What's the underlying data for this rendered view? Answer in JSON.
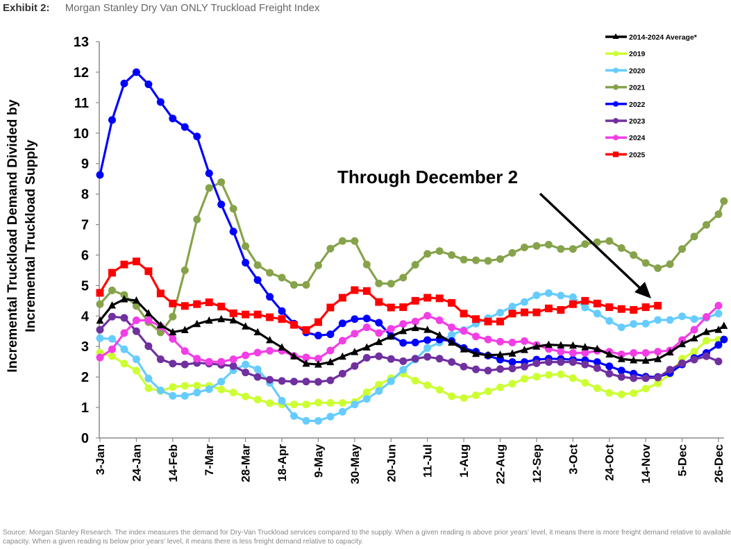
{
  "header": {
    "exhibit": "Exhibit 2:",
    "title": "Morgan Stanley Dry Van ONLY Truckload Freight Index"
  },
  "footer": {
    "source": "Source: Morgan Stanley Research. The index measures the demand for Dry-Van Truckload services compared to the supply. When a given reading is above prior years' level, it means there is more freight demand relative to available capacity. When a given reading is below prior years' level, it means there is less freight demand relative to capacity."
  },
  "chart_data": {
    "type": "line",
    "title": "Morgan Stanley Dry Van ONLY Truckload Freight Index",
    "ylabel_lines": [
      "Incremental Truckload Demand Divided by",
      "Incremental Truckload Supply"
    ],
    "xlabel": "",
    "ylim": [
      0,
      13
    ],
    "yticks": [
      "0",
      "1",
      "2",
      "3",
      "4",
      "5",
      "6",
      "7",
      "8",
      "9",
      "10",
      "11",
      "12",
      "13"
    ],
    "x_unit": "weeks since 3-Jan",
    "xlim": [
      0,
      51.45
    ],
    "xtick_labels": [
      "3-Jan",
      "24-Jan",
      "14-Feb",
      "7-Mar",
      "28-Mar",
      "18-Apr",
      "9-May",
      "30-May",
      "20-Jun",
      "11-Jul",
      "1-Aug",
      "22-Aug",
      "12-Sep",
      "3-Oct",
      "24-Oct",
      "14-Nov",
      "5-Dec",
      "26-Dec"
    ],
    "xtick_weeks": [
      0,
      3,
      6,
      9,
      12,
      15,
      18,
      21,
      24,
      27,
      30,
      33,
      36,
      39,
      42,
      45,
      48,
      51
    ],
    "x_weeks": [
      0,
      1,
      2,
      3,
      4,
      5,
      6,
      7,
      8,
      9,
      10,
      11,
      12,
      13,
      14,
      15,
      16,
      17,
      18,
      19,
      20,
      21,
      22,
      23,
      24,
      25,
      26,
      27,
      28,
      29,
      30,
      31,
      32,
      33,
      34,
      35,
      36,
      37,
      38,
      39,
      40,
      41,
      42,
      43,
      44,
      45,
      46,
      47,
      48,
      49,
      50,
      51,
      51.45
    ],
    "grid": false,
    "legend_position": "top-right",
    "annotation": "Through December 2",
    "series": [
      {
        "name": "2019",
        "color": "#ccff33",
        "marker": "circle",
        "values": [
          2.8,
          2.68,
          2.44,
          2.21,
          1.63,
          1.54,
          1.67,
          1.71,
          1.72,
          1.71,
          1.59,
          1.49,
          1.36,
          1.26,
          1.14,
          1.1,
          1.1,
          1.1,
          1.16,
          1.15,
          1.15,
          1.18,
          1.5,
          1.75,
          1.96,
          2.11,
          1.88,
          1.73,
          1.58,
          1.37,
          1.31,
          1.4,
          1.53,
          1.66,
          1.78,
          1.94,
          2.01,
          2.07,
          2.09,
          1.96,
          1.81,
          1.63,
          1.48,
          1.43,
          1.47,
          1.62,
          1.79,
          2.1,
          2.6,
          2.83,
          3.19,
          3.22
        ]
      },
      {
        "name": "2020",
        "color": "#66ccff",
        "marker": "circle",
        "values": [
          3.27,
          3.25,
          2.91,
          2.58,
          1.95,
          1.56,
          1.38,
          1.38,
          1.49,
          1.6,
          1.85,
          2.22,
          2.41,
          2.25,
          1.81,
          1.22,
          0.72,
          0.56,
          0.56,
          0.7,
          0.86,
          1.1,
          1.28,
          1.54,
          1.86,
          2.24,
          2.57,
          2.95,
          3.13,
          3.38,
          3.54,
          3.75,
          3.93,
          4.11,
          4.31,
          4.46,
          4.68,
          4.75,
          4.67,
          4.62,
          4.28,
          4.08,
          3.84,
          3.63,
          3.74,
          3.75,
          3.87,
          3.87,
          3.99,
          3.9,
          3.94,
          4.08
        ]
      },
      {
        "name": "2021",
        "color": "#86a34b",
        "marker": "circle",
        "values": [
          4.39,
          4.84,
          4.69,
          4.33,
          3.8,
          3.46,
          3.98,
          5.5,
          7.17,
          8.2,
          8.39,
          7.52,
          6.29,
          5.67,
          5.42,
          5.26,
          5.02,
          5.02,
          5.66,
          6.21,
          6.46,
          6.46,
          5.69,
          5.07,
          5.06,
          5.26,
          5.68,
          6.04,
          6.13,
          6.0,
          5.85,
          5.83,
          5.81,
          5.87,
          6.07,
          6.25,
          6.3,
          6.34,
          6.2,
          6.2,
          6.36,
          6.42,
          6.46,
          6.23,
          6.0,
          5.74,
          5.57,
          5.7,
          6.2,
          6.61,
          6.99,
          7.34,
          7.77
        ]
      },
      {
        "name": "2022",
        "color": "#0000ff",
        "marker": "circle",
        "values": [
          8.63,
          10.43,
          11.63,
          12.0,
          11.6,
          11.02,
          10.48,
          10.2,
          9.89,
          8.68,
          7.66,
          6.77,
          5.75,
          5.18,
          4.63,
          4.16,
          3.75,
          3.46,
          3.36,
          3.4,
          3.76,
          3.9,
          3.92,
          3.78,
          3.35,
          3.12,
          3.13,
          3.21,
          3.23,
          3.18,
          2.95,
          2.83,
          2.7,
          2.57,
          2.49,
          2.49,
          2.57,
          2.6,
          2.59,
          2.57,
          2.55,
          2.49,
          2.35,
          2.21,
          2.11,
          2.01,
          2.0,
          2.13,
          2.41,
          2.62,
          2.79,
          3.05,
          3.23
        ]
      },
      {
        "name": "2023",
        "color": "#7030a0",
        "marker": "circle",
        "values": [
          3.55,
          3.98,
          3.94,
          3.5,
          3.01,
          2.58,
          2.44,
          2.41,
          2.46,
          2.44,
          2.4,
          2.36,
          2.15,
          2.0,
          1.91,
          1.87,
          1.85,
          1.85,
          1.84,
          1.89,
          2.11,
          2.36,
          2.63,
          2.68,
          2.59,
          2.52,
          2.6,
          2.66,
          2.6,
          2.49,
          2.34,
          2.25,
          2.21,
          2.26,
          2.28,
          2.34,
          2.45,
          2.49,
          2.49,
          2.49,
          2.41,
          2.29,
          2.11,
          2.0,
          1.96,
          1.96,
          1.98,
          2.24,
          2.45,
          2.57,
          2.68,
          2.51
        ]
      },
      {
        "name": "2024",
        "color": "#f23ee6",
        "marker": "circle",
        "values": [
          2.64,
          2.91,
          3.44,
          3.86,
          3.86,
          3.66,
          3.25,
          2.85,
          2.6,
          2.5,
          2.5,
          2.58,
          2.71,
          2.8,
          2.86,
          2.86,
          2.69,
          2.64,
          2.6,
          2.87,
          3.19,
          3.42,
          3.63,
          3.44,
          3.58,
          3.74,
          3.82,
          4.01,
          3.86,
          3.63,
          3.51,
          3.33,
          3.23,
          3.16,
          3.13,
          3.18,
          3.05,
          2.92,
          2.83,
          2.79,
          2.79,
          2.86,
          2.83,
          2.74,
          2.79,
          2.79,
          2.83,
          2.87,
          3.21,
          3.55,
          3.97,
          4.34
        ]
      },
      {
        "name": "2014-2024 Average*",
        "color": "#000000",
        "marker": "triangle",
        "values": [
          3.85,
          4.35,
          4.55,
          4.51,
          4.09,
          3.7,
          3.47,
          3.54,
          3.74,
          3.85,
          3.9,
          3.86,
          3.66,
          3.47,
          3.21,
          2.97,
          2.68,
          2.44,
          2.41,
          2.49,
          2.67,
          2.82,
          2.97,
          3.15,
          3.33,
          3.51,
          3.61,
          3.55,
          3.37,
          3.13,
          2.91,
          2.76,
          2.72,
          2.73,
          2.77,
          2.89,
          3.0,
          3.06,
          3.04,
          3.03,
          2.98,
          2.92,
          2.74,
          2.59,
          2.55,
          2.54,
          2.59,
          2.81,
          3.08,
          3.27,
          3.48,
          3.55,
          3.68
        ]
      },
      {
        "name": "2025",
        "color": "#ff0000",
        "marker": "square",
        "values": [
          4.76,
          5.42,
          5.69,
          5.79,
          5.47,
          4.74,
          4.41,
          4.33,
          4.39,
          4.45,
          4.31,
          4.09,
          4.05,
          4.05,
          3.96,
          3.9,
          3.71,
          3.54,
          3.8,
          4.28,
          4.6,
          4.85,
          4.82,
          4.46,
          4.28,
          4.29,
          4.5,
          4.6,
          4.58,
          4.43,
          4.08,
          3.9,
          3.82,
          3.82,
          4.08,
          4.12,
          4.12,
          4.25,
          4.2,
          4.39,
          4.5,
          4.41,
          4.29,
          4.23,
          4.2,
          4.29,
          4.34
        ]
      }
    ],
    "legend_order": [
      "2014-2024 Average*",
      "2019",
      "2020",
      "2021",
      "2022",
      "2023",
      "2024",
      "2025"
    ]
  }
}
